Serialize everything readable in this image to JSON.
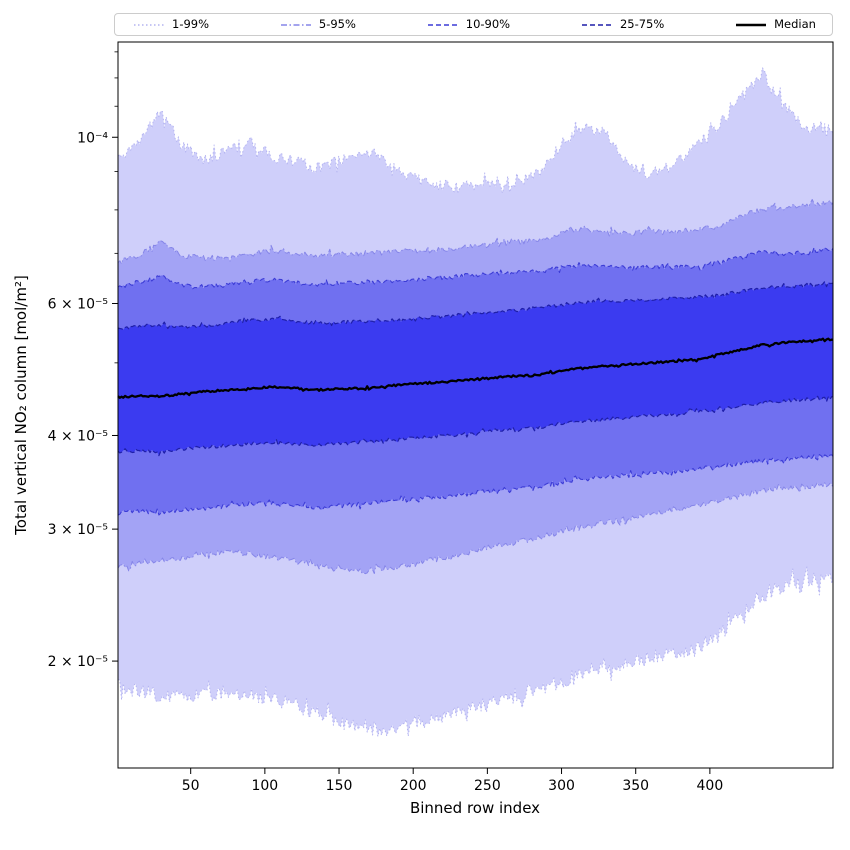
{
  "chart_data": {
    "type": "area",
    "title": "",
    "xlabel": "Binned row index",
    "ylabel": "Total vertical NO₂ column [mol/m²]",
    "yscale": "log",
    "grid": false,
    "legend_position": "top",
    "xlim": [
      1,
      483
    ],
    "ylim": [
      1.44e-05,
      0.000134
    ],
    "x_ticks": [
      50,
      100,
      150,
      200,
      250,
      300,
      350,
      400
    ],
    "y_ticks": [
      {
        "value": 0.0001,
        "label": "10⁻⁴"
      },
      {
        "value": 6e-05,
        "label": "6 × 10⁻⁵"
      },
      {
        "value": 4e-05,
        "label": "4 × 10⁻⁵"
      },
      {
        "value": 3e-05,
        "label": "3 × 10⁻⁵"
      },
      {
        "value": 2e-05,
        "label": "2 × 10⁻⁵"
      }
    ],
    "y_minor_ticks": [
      5e-05,
      7e-05,
      8e-05,
      9e-05,
      0.00011,
      0.00012,
      0.00013
    ],
    "unit": "mol/m²",
    "value_scale": 1e-05,
    "x": [
      1,
      15,
      30,
      45,
      60,
      75,
      90,
      105,
      120,
      135,
      150,
      165,
      180,
      195,
      210,
      225,
      240,
      255,
      270,
      285,
      300,
      315,
      330,
      345,
      360,
      375,
      390,
      405,
      420,
      435,
      450,
      465,
      480,
      483
    ],
    "series": [
      {
        "name": "p1",
        "percentile": 1,
        "jitter_decades": 0.01,
        "values": [
          1.85,
          1.82,
          1.8,
          1.78,
          1.8,
          1.82,
          1.8,
          1.78,
          1.75,
          1.7,
          1.66,
          1.63,
          1.62,
          1.64,
          1.68,
          1.7,
          1.73,
          1.76,
          1.8,
          1.84,
          1.88,
          1.93,
          1.97,
          2.0,
          2.02,
          2.05,
          2.08,
          2.15,
          2.32,
          2.45,
          2.52,
          2.56,
          2.58,
          2.56
        ]
      },
      {
        "name": "p5",
        "percentile": 5,
        "jitter_decades": 0.0038,
        "values": [
          2.68,
          2.7,
          2.72,
          2.74,
          2.78,
          2.8,
          2.78,
          2.75,
          2.72,
          2.68,
          2.65,
          2.64,
          2.66,
          2.68,
          2.72,
          2.76,
          2.8,
          2.85,
          2.88,
          2.92,
          2.98,
          3.02,
          3.06,
          3.1,
          3.14,
          3.18,
          3.22,
          3.26,
          3.32,
          3.38,
          3.4,
          3.42,
          3.44,
          3.44
        ]
      },
      {
        "name": "p10",
        "percentile": 10,
        "jitter_decades": 0.003,
        "values": [
          3.15,
          3.17,
          3.15,
          3.18,
          3.2,
          3.22,
          3.24,
          3.25,
          3.22,
          3.2,
          3.22,
          3.24,
          3.26,
          3.28,
          3.3,
          3.32,
          3.35,
          3.38,
          3.4,
          3.42,
          3.46,
          3.5,
          3.52,
          3.54,
          3.56,
          3.58,
          3.6,
          3.63,
          3.67,
          3.7,
          3.72,
          3.74,
          3.76,
          3.76
        ]
      },
      {
        "name": "p25",
        "percentile": 25,
        "jitter_decades": 0.0022,
        "values": [
          3.8,
          3.82,
          3.8,
          3.84,
          3.86,
          3.88,
          3.9,
          3.92,
          3.9,
          3.88,
          3.9,
          3.92,
          3.94,
          3.96,
          3.98,
          4.0,
          4.03,
          4.06,
          4.08,
          4.1,
          4.15,
          4.18,
          4.2,
          4.22,
          4.25,
          4.27,
          4.3,
          4.33,
          4.38,
          4.42,
          4.45,
          4.47,
          4.49,
          4.5
        ]
      },
      {
        "name": "p50",
        "percentile": 50,
        "jitter_decades": 0.0013,
        "values": [
          4.5,
          4.52,
          4.51,
          4.55,
          4.58,
          4.6,
          4.62,
          4.65,
          4.63,
          4.6,
          4.62,
          4.62,
          4.65,
          4.68,
          4.7,
          4.72,
          4.75,
          4.78,
          4.8,
          4.82,
          4.88,
          4.92,
          4.95,
          4.98,
          5.0,
          5.02,
          5.05,
          5.12,
          5.2,
          5.28,
          5.32,
          5.35,
          5.37,
          5.37
        ]
      },
      {
        "name": "p75",
        "percentile": 75,
        "jitter_decades": 0.0022,
        "values": [
          5.55,
          5.6,
          5.62,
          5.58,
          5.6,
          5.65,
          5.7,
          5.72,
          5.68,
          5.65,
          5.66,
          5.68,
          5.7,
          5.72,
          5.75,
          5.78,
          5.82,
          5.85,
          5.88,
          5.92,
          5.98,
          6.02,
          6.05,
          6.05,
          6.08,
          6.1,
          6.12,
          6.15,
          6.22,
          6.28,
          6.32,
          6.35,
          6.37,
          6.38
        ]
      },
      {
        "name": "p90",
        "percentile": 90,
        "jitter_decades": 0.0028,
        "values": [
          6.3,
          6.4,
          6.52,
          6.35,
          6.32,
          6.38,
          6.42,
          6.45,
          6.4,
          6.36,
          6.38,
          6.4,
          6.42,
          6.45,
          6.48,
          6.5,
          6.55,
          6.58,
          6.6,
          6.62,
          6.7,
          6.75,
          6.72,
          6.7,
          6.72,
          6.7,
          6.72,
          6.8,
          6.9,
          7.05,
          6.98,
          7.02,
          7.1,
          7.1
        ]
      },
      {
        "name": "p95",
        "percentile": 95,
        "jitter_decades": 0.0035,
        "values": [
          6.85,
          6.95,
          7.25,
          6.95,
          6.9,
          6.92,
          7.0,
          7.05,
          7.0,
          6.95,
          6.98,
          7.0,
          7.02,
          7.05,
          7.08,
          7.1,
          7.15,
          7.2,
          7.25,
          7.3,
          7.45,
          7.55,
          7.5,
          7.45,
          7.5,
          7.48,
          7.52,
          7.6,
          7.85,
          8.0,
          8.08,
          8.12,
          8.18,
          8.2
        ]
      },
      {
        "name": "p99",
        "percentile": 99,
        "jitter_decades": 0.008,
        "values": [
          9.5,
          9.9,
          10.9,
          9.7,
          9.3,
          9.6,
          9.9,
          9.4,
          9.3,
          9.1,
          9.3,
          9.6,
          9.4,
          8.9,
          8.7,
          8.6,
          8.6,
          8.7,
          8.7,
          9.0,
          9.8,
          10.3,
          10.1,
          9.2,
          8.9,
          9.2,
          9.7,
          10.3,
          11.2,
          12.2,
          11.0,
          10.3,
          10.4,
          10.2
        ]
      }
    ],
    "bands": [
      {
        "label": "1-99%",
        "lower": "p1",
        "upper": "p99",
        "fill": "#cfcffa",
        "edge": "#b3b3f0",
        "dash": "1.5 2.5",
        "edge_width": 1
      },
      {
        "label": "5-95%",
        "lower": "p5",
        "upper": "p95",
        "fill": "#a3a3f5",
        "edge": "#8585e8",
        "dash": "6 2.5 1.5 2.5",
        "edge_width": 1
      },
      {
        "label": "10-90%",
        "lower": "p10",
        "upper": "p90",
        "fill": "#7070f0",
        "edge": "#3c3cd6",
        "dash": "5 3",
        "edge_width": 1.1
      },
      {
        "label": "25-75%",
        "lower": "p25",
        "upper": "p75",
        "fill": "#3b3bf0",
        "edge": "#1f1fa8",
        "dash": "5 3",
        "edge_width": 1.2
      }
    ],
    "median": {
      "label": "Median",
      "series": "p50",
      "color": "#000000",
      "width": 2.3
    }
  }
}
